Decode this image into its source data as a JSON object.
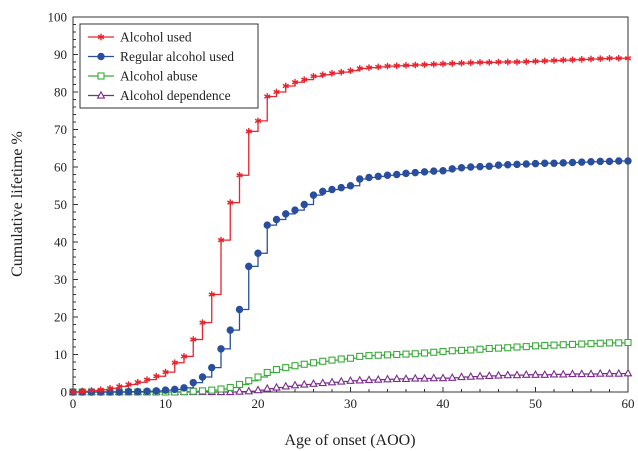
{
  "chart_data": {
    "type": "line",
    "step": true,
    "xlabel": "Age of onset  (AOO)",
    "ylabel": "Cumulative lifetime %",
    "xlim": [
      0,
      60
    ],
    "ylim": [
      0,
      100
    ],
    "xticks": [
      0,
      10,
      20,
      30,
      40,
      50,
      60
    ],
    "yticks": [
      0,
      10,
      20,
      30,
      40,
      50,
      60,
      70,
      80,
      90,
      100
    ],
    "grid": false,
    "legend_position": "top-left",
    "series": [
      {
        "name": "Alcohol used",
        "color": "#e8242e",
        "marker": "asterisk",
        "x": [
          0,
          1,
          2,
          3,
          4,
          5,
          6,
          7,
          8,
          9,
          10,
          11,
          12,
          13,
          14,
          15,
          16,
          17,
          18,
          19,
          20,
          21,
          22,
          23,
          24,
          25,
          26,
          27,
          28,
          29,
          30,
          31,
          32,
          33,
          34,
          35,
          36,
          37,
          38,
          39,
          40,
          41,
          42,
          43,
          44,
          45,
          46,
          47,
          48,
          49,
          50,
          51,
          52,
          53,
          54,
          55,
          56,
          57,
          58,
          59,
          60
        ],
        "y": [
          0,
          0.2,
          0.4,
          0.6,
          1,
          1.5,
          2,
          2.6,
          3.3,
          4.2,
          5.3,
          7.8,
          9.5,
          14,
          18.5,
          26,
          40.5,
          50.5,
          57.8,
          69.5,
          72.3,
          78.8,
          80,
          81.6,
          82.6,
          83.3,
          84.2,
          84.6,
          85,
          85.3,
          85.7,
          86.3,
          86.5,
          86.7,
          86.9,
          87,
          87.1,
          87.2,
          87.3,
          87.4,
          87.5,
          87.6,
          87.7,
          87.8,
          87.9,
          87.9,
          88,
          88,
          88,
          88.1,
          88.2,
          88.3,
          88.4,
          88.5,
          88.6,
          88.7,
          88.8,
          88.9,
          89,
          89,
          89
        ]
      },
      {
        "name": "Regular alcohol used",
        "color": "#2a4e9e",
        "marker": "circle",
        "x": [
          0,
          1,
          2,
          3,
          4,
          5,
          6,
          7,
          8,
          9,
          10,
          11,
          12,
          13,
          14,
          15,
          16,
          17,
          18,
          19,
          20,
          21,
          22,
          23,
          24,
          25,
          26,
          27,
          28,
          29,
          30,
          31,
          32,
          33,
          34,
          35,
          36,
          37,
          38,
          39,
          40,
          41,
          42,
          43,
          44,
          45,
          46,
          47,
          48,
          49,
          50,
          51,
          52,
          53,
          54,
          55,
          56,
          57,
          58,
          59,
          60
        ],
        "y": [
          0,
          0,
          0,
          0,
          0,
          0,
          0.1,
          0.1,
          0.2,
          0.3,
          0.5,
          0.7,
          1.1,
          2.5,
          4,
          6.5,
          11.5,
          16.5,
          22,
          33.5,
          37,
          44.5,
          46,
          47.5,
          48.5,
          50,
          52.5,
          53.5,
          54,
          54.5,
          55,
          56.8,
          57.2,
          57.5,
          57.8,
          58,
          58.3,
          58.5,
          58.7,
          58.9,
          59,
          59.5,
          59.8,
          60,
          60.1,
          60.2,
          60.5,
          60.6,
          60.7,
          60.8,
          60.9,
          61,
          61,
          61.1,
          61.2,
          61.3,
          61.4,
          61.5,
          61.5,
          61.6,
          61.6
        ]
      },
      {
        "name": "Alcohol abuse",
        "color": "#3aab3a",
        "marker": "square",
        "x": [
          0,
          1,
          2,
          3,
          4,
          5,
          6,
          7,
          8,
          9,
          10,
          11,
          12,
          13,
          14,
          15,
          16,
          17,
          18,
          19,
          20,
          21,
          22,
          23,
          24,
          25,
          26,
          27,
          28,
          29,
          30,
          31,
          32,
          33,
          34,
          35,
          36,
          37,
          38,
          39,
          40,
          41,
          42,
          43,
          44,
          45,
          46,
          47,
          48,
          49,
          50,
          51,
          52,
          53,
          54,
          55,
          56,
          57,
          58,
          59,
          60
        ],
        "y": [
          0,
          0,
          0,
          0,
          0,
          0,
          0,
          0,
          0,
          0,
          0,
          0,
          0.1,
          0.2,
          0.3,
          0.5,
          0.8,
          1.2,
          2,
          3,
          4,
          5.2,
          6,
          6.5,
          7,
          7.4,
          7.8,
          8.2,
          8.5,
          8.8,
          9,
          9.5,
          9.7,
          9.8,
          9.9,
          10,
          10.1,
          10.2,
          10.4,
          10.6,
          10.8,
          11,
          11.1,
          11.2,
          11.4,
          11.6,
          11.7,
          11.8,
          12,
          12.1,
          12.3,
          12.4,
          12.5,
          12.6,
          12.7,
          12.8,
          12.9,
          13,
          13.1,
          13.1,
          13.2
        ]
      },
      {
        "name": "Alcohol dependence",
        "color": "#7a2c8c",
        "marker": "triangle",
        "x": [
          0,
          1,
          2,
          3,
          4,
          5,
          6,
          7,
          8,
          9,
          10,
          11,
          12,
          13,
          14,
          15,
          16,
          17,
          18,
          19,
          20,
          21,
          22,
          23,
          24,
          25,
          26,
          27,
          28,
          29,
          30,
          31,
          32,
          33,
          34,
          35,
          36,
          37,
          38,
          39,
          40,
          41,
          42,
          43,
          44,
          45,
          46,
          47,
          48,
          49,
          50,
          51,
          52,
          53,
          54,
          55,
          56,
          57,
          58,
          59,
          60
        ],
        "y": [
          0,
          0,
          0,
          0,
          0,
          0,
          0,
          0,
          0,
          0,
          0,
          0,
          0,
          0,
          0,
          0,
          0,
          0,
          0.1,
          0.2,
          0.5,
          0.9,
          1.2,
          1.5,
          1.8,
          2,
          2.2,
          2.4,
          2.6,
          2.8,
          3,
          3.1,
          3.2,
          3.3,
          3.4,
          3.5,
          3.5,
          3.6,
          3.6,
          3.7,
          3.7,
          3.8,
          4,
          4.1,
          4.2,
          4.3,
          4.4,
          4.5,
          4.5,
          4.6,
          4.6,
          4.6,
          4.7,
          4.7,
          4.8,
          4.8,
          4.8,
          4.9,
          4.9,
          4.9,
          5
        ]
      }
    ]
  }
}
